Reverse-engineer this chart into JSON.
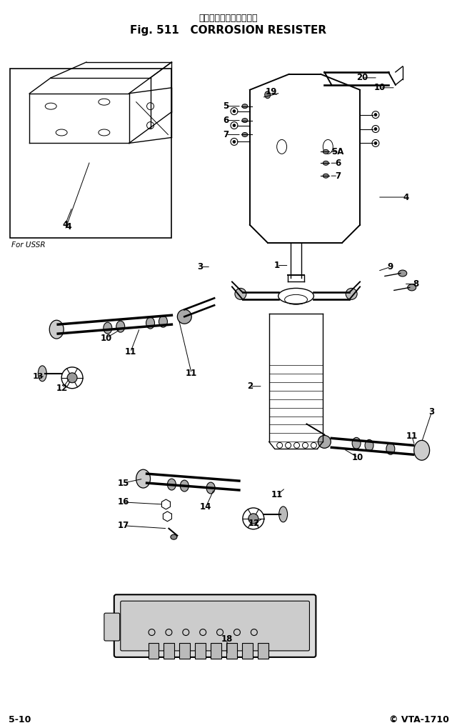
{
  "title_japanese": "コロージョン　レジスタ",
  "title_english": "Fig. 511   CORROSION RESISTER",
  "page_left": "5-10",
  "page_right": "© VTA-1710",
  "bg_color": "#ffffff",
  "line_color": "#000000"
}
